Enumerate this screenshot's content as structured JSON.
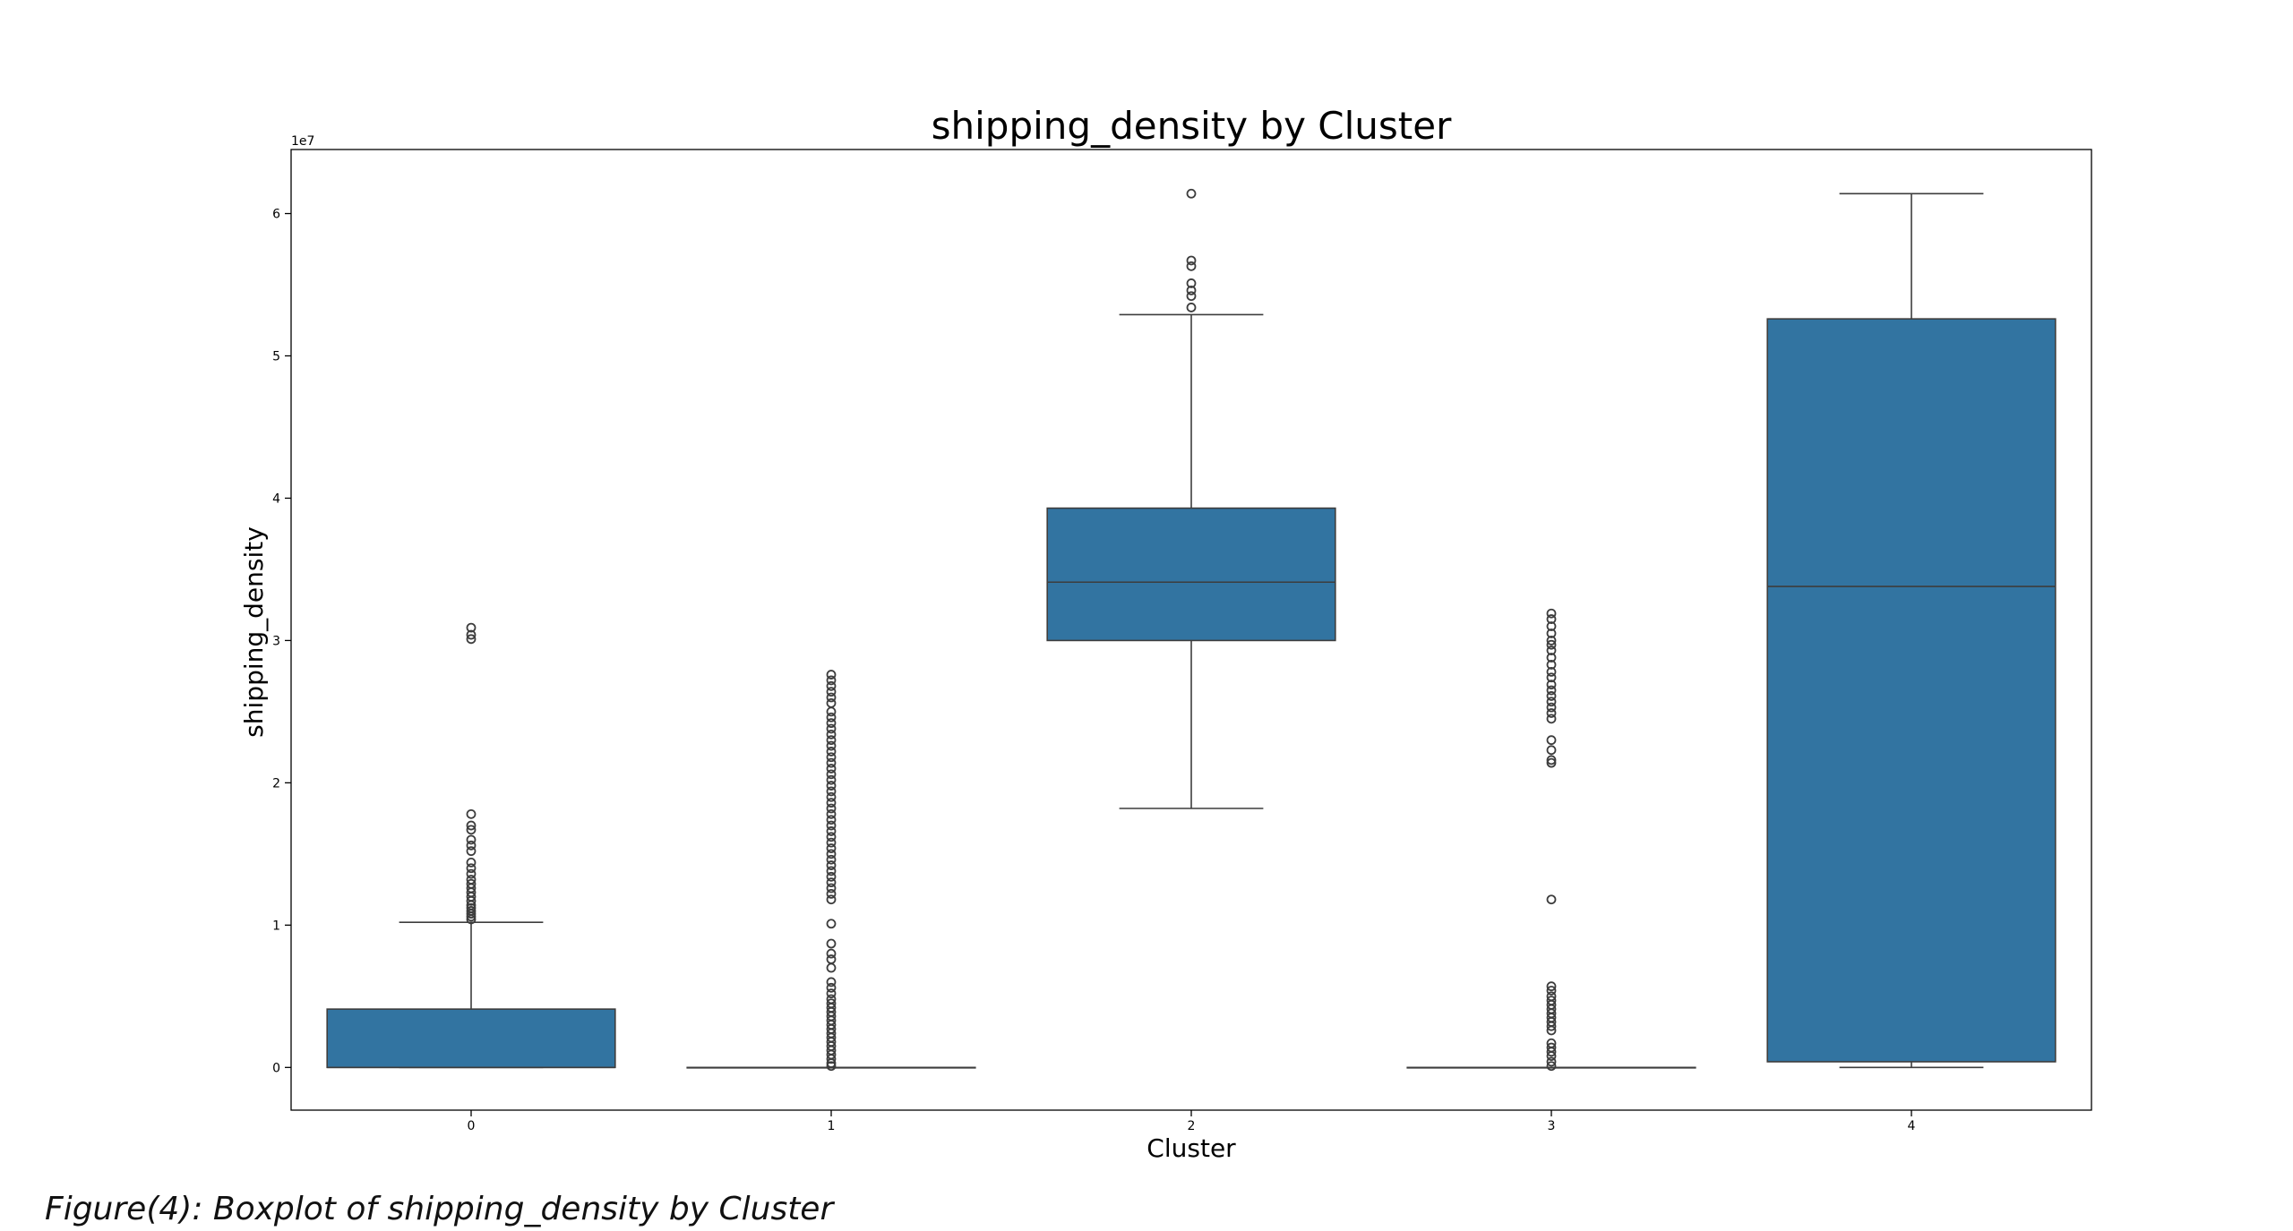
{
  "chart_data": {
    "type": "boxplot",
    "title": "shipping_density by Cluster",
    "xlabel": "Cluster",
    "ylabel": "shipping_density",
    "y_offset_label": "1e7",
    "y_scale": 10000000,
    "ylim": [
      -3000000,
      64500000
    ],
    "yticks": [
      0,
      1,
      2,
      3,
      4,
      5,
      6
    ],
    "grid": false,
    "legend": "none",
    "box_color": "#3274a1",
    "line_color": "#3d3d3d",
    "categories": [
      "0",
      "1",
      "2",
      "3",
      "4"
    ],
    "boxes": [
      {
        "category": "0",
        "whisker_low": 0,
        "q1": 0,
        "median": 0,
        "q3": 4100000,
        "whisker_high": 10200000,
        "outliers": [
          10400000,
          10600000,
          10800000,
          11000000,
          11200000,
          11400000,
          11700000,
          12000000,
          12300000,
          12600000,
          12900000,
          13200000,
          13600000,
          14000000,
          14400000,
          15200000,
          15600000,
          16000000,
          16700000,
          17000000,
          17800000,
          30100000,
          30400000,
          30900000
        ]
      },
      {
        "category": "1",
        "whisker_low": 0,
        "q1": 0,
        "median": 0,
        "q3": 0,
        "whisker_high": 0,
        "outliers": [
          100000,
          300000,
          600000,
          900000,
          1200000,
          1500000,
          1800000,
          2100000,
          2400000,
          2700000,
          3000000,
          3300000,
          3600000,
          3900000,
          4200000,
          4500000,
          4800000,
          5200000,
          5600000,
          6000000,
          7000000,
          7600000,
          8000000,
          8700000,
          10100000,
          11800000,
          12200000,
          12600000,
          13000000,
          13400000,
          13800000,
          14200000,
          14600000,
          15000000,
          15400000,
          15800000,
          16200000,
          16600000,
          17000000,
          17400000,
          17800000,
          18200000,
          18600000,
          19000000,
          19400000,
          19800000,
          20200000,
          20600000,
          21000000,
          21400000,
          21800000,
          22200000,
          22600000,
          23000000,
          23400000,
          23800000,
          24200000,
          24600000,
          25000000,
          25600000,
          26000000,
          26400000,
          26800000,
          27200000,
          27600000
        ]
      },
      {
        "category": "2",
        "whisker_low": 18200000,
        "q1": 30000000,
        "median": 34100000,
        "q3": 39300000,
        "whisker_high": 52900000,
        "outliers": [
          53400000,
          54200000,
          54600000,
          55100000,
          56300000,
          56700000,
          61400000
        ]
      },
      {
        "category": "3",
        "whisker_low": 0,
        "q1": 0,
        "median": 0,
        "q3": 0,
        "whisker_high": 0,
        "outliers": [
          100000,
          400000,
          800000,
          1100000,
          1400000,
          1700000,
          2600000,
          2900000,
          3200000,
          3500000,
          3800000,
          4100000,
          4400000,
          4700000,
          5000000,
          5400000,
          5700000,
          11800000,
          21400000,
          21600000,
          22300000,
          23000000,
          24500000,
          24900000,
          25300000,
          25700000,
          26100000,
          26500000,
          26900000,
          27400000,
          27800000,
          28300000,
          28800000,
          29300000,
          29700000,
          30000000,
          30500000,
          31000000,
          31500000,
          31900000
        ]
      },
      {
        "category": "4",
        "whisker_low": 0,
        "q1": 400000,
        "median": 33800000,
        "q3": 52600000,
        "whisker_high": 61400000,
        "outliers": []
      }
    ]
  },
  "caption": "Figure(4): Boxplot of shipping_density by Cluster"
}
